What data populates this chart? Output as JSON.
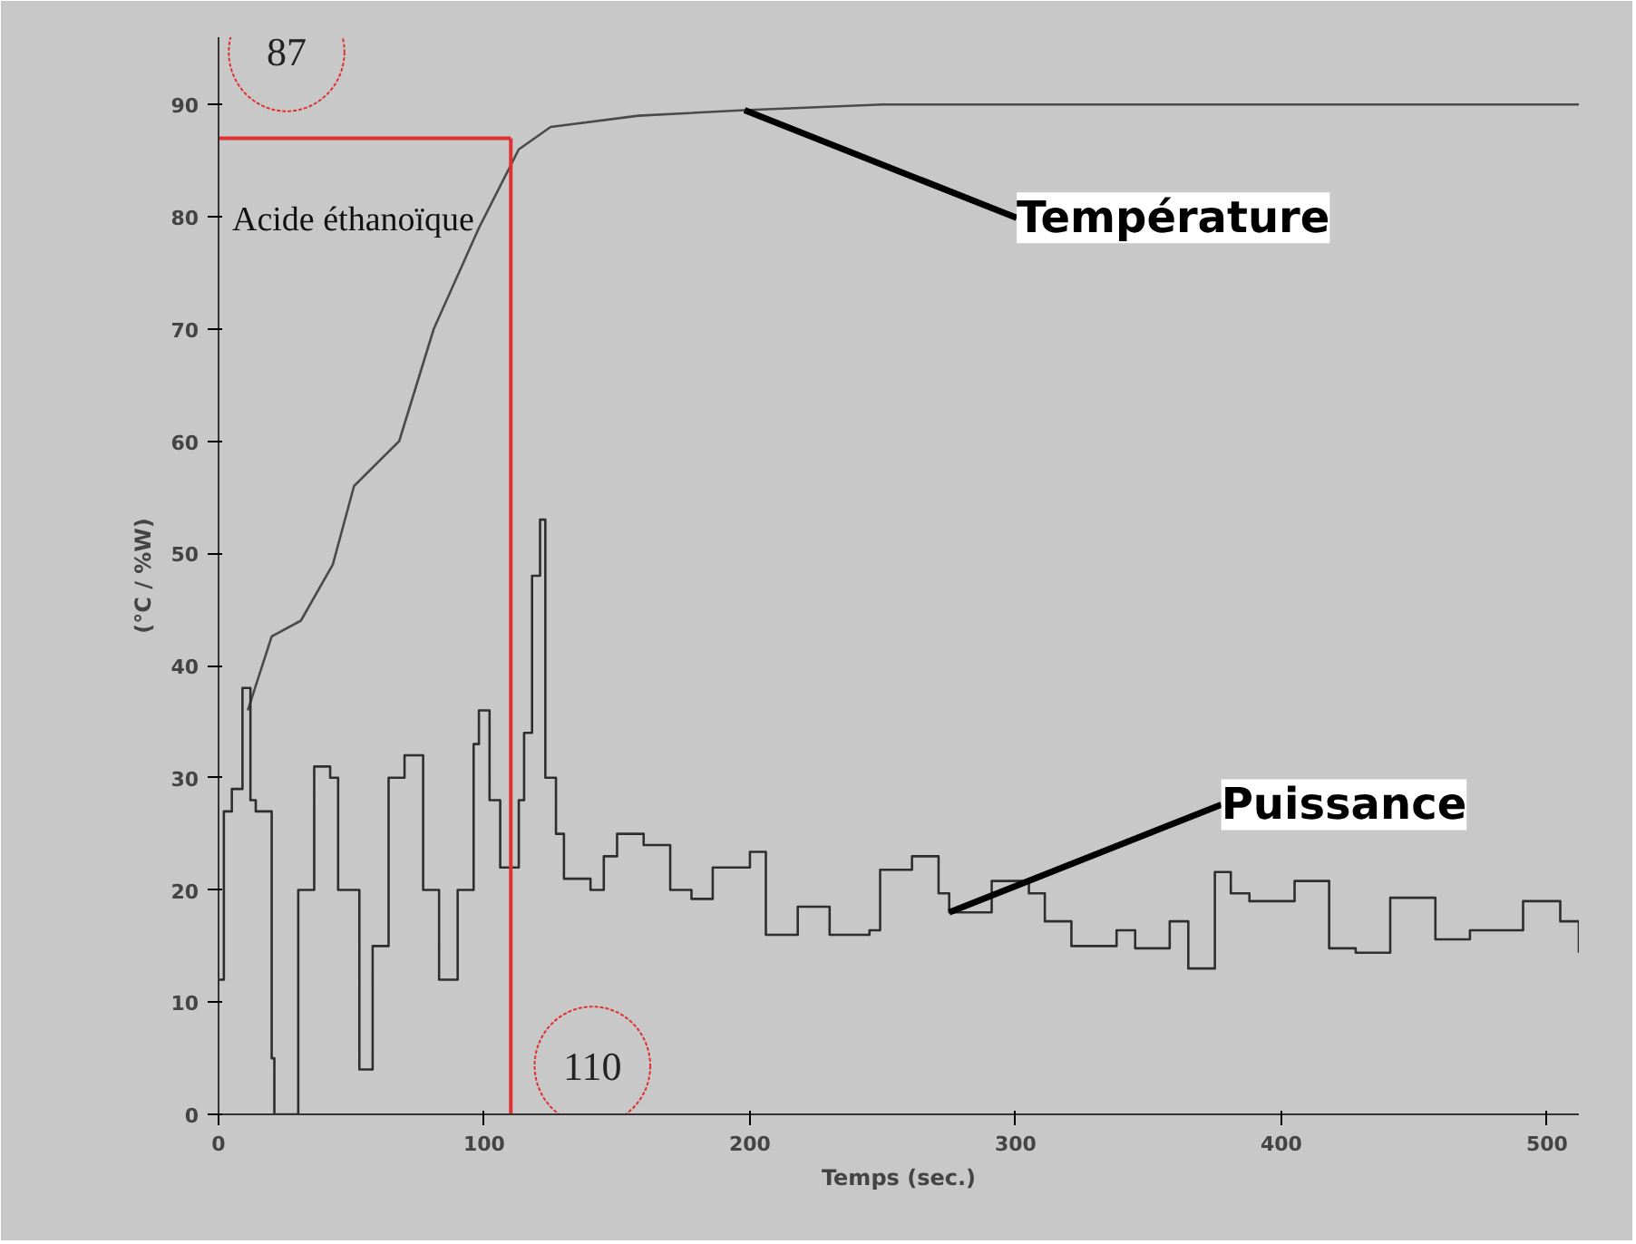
{
  "chart_data": {
    "type": "line",
    "xlabel": "Temps (sec.)",
    "ylabel": "(°C / %W)",
    "xlim": [
      0,
      512
    ],
    "ylim": [
      0,
      96
    ],
    "xticks": [
      0,
      100,
      200,
      300,
      400,
      500
    ],
    "yticks": [
      0,
      10,
      20,
      30,
      40,
      50,
      60,
      70,
      80,
      90
    ],
    "grid": false,
    "marker": "none",
    "line_style": "solid",
    "series": [
      {
        "color": "#4a4a4a",
        "x": [
          11,
          20,
          31,
          43,
          51,
          68,
          81,
          98,
          113,
          125,
          158,
          198,
          250,
          300,
          350,
          400,
          450,
          512
        ],
        "values": [
          36,
          42.6,
          44,
          49,
          56,
          60,
          70,
          79,
          86,
          88,
          89,
          89.5,
          90,
          90,
          90,
          90,
          90,
          90
        ]
      },
      {
        "type": "step",
        "color": "#2e2e2e",
        "x": [
          0,
          2,
          5,
          9,
          12,
          14,
          20,
          21,
          26,
          30,
          36,
          42,
          45,
          53,
          58,
          64,
          70,
          77,
          83,
          90,
          96,
          98,
          102,
          106,
          110,
          113,
          115,
          118,
          121,
          123,
          127,
          130,
          140,
          145,
          150,
          160,
          170,
          178,
          186,
          200,
          206,
          218,
          230,
          245,
          249,
          261,
          271,
          275,
          291,
          305,
          311,
          321,
          338,
          345,
          358,
          365,
          375,
          381,
          388,
          405,
          418,
          428,
          441,
          458,
          471,
          491,
          505,
          512
        ],
        "values": [
          12,
          27,
          29,
          38,
          28,
          27,
          5,
          0,
          0,
          20,
          31,
          30,
          20,
          4,
          15,
          30,
          32,
          20,
          12,
          20,
          33,
          36,
          28,
          22,
          22,
          28,
          34,
          48,
          53,
          30,
          25,
          21,
          20,
          23,
          25,
          24,
          20,
          19.2,
          22,
          23.4,
          16,
          18.5,
          16,
          16.4,
          21.8,
          23,
          19.7,
          18,
          20.8,
          19.7,
          17.2,
          15,
          16.4,
          14.8,
          17.2,
          13,
          21.6,
          19.7,
          19,
          20.8,
          14.8,
          14.4,
          19.3,
          15.6,
          16.4,
          19,
          17.2,
          14.4
        ]
      }
    ],
    "ref_lines": [
      {
        "axis": "y",
        "value": 87,
        "label": "87",
        "color": "#e03030"
      },
      {
        "axis": "x",
        "value": 110,
        "label": "110",
        "color": "#e03030"
      }
    ],
    "annotations": [
      {
        "text": "Température",
        "x": 198,
        "y": 89.5
      },
      {
        "text": "Puissance",
        "x": 275,
        "y": 18
      },
      "Acide éthanoïque"
    ]
  }
}
